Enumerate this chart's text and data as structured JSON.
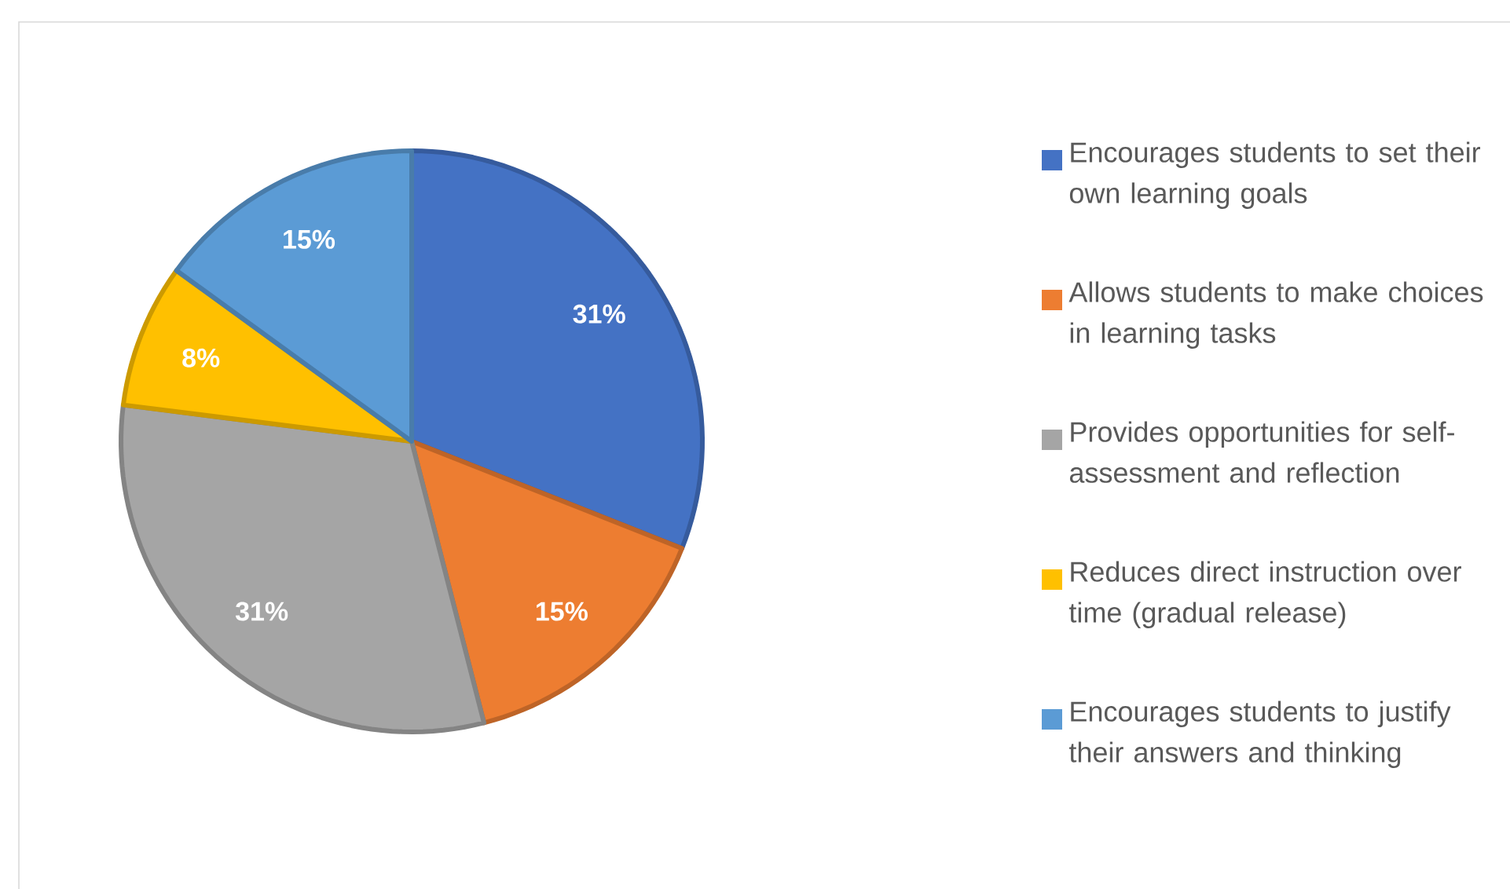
{
  "chart_data": {
    "type": "pie",
    "categories": [
      "Encourages students to set their own learning goals",
      "Allows students to make choices in learning tasks",
      "Provides opportunities for self-assessment and reflection",
      "Reduces direct instruction over time (gradual release)",
      "Encourages students to justify their answers and thinking"
    ],
    "values": [
      31,
      15,
      31,
      8,
      15
    ],
    "colors": [
      "#4472c4",
      "#ed7d31",
      "#a5a5a5",
      "#ffc000",
      "#5b9bd5"
    ],
    "value_labels": [
      "31%",
      "15%",
      "31%",
      "8%",
      "15%"
    ],
    "legend": "right"
  }
}
